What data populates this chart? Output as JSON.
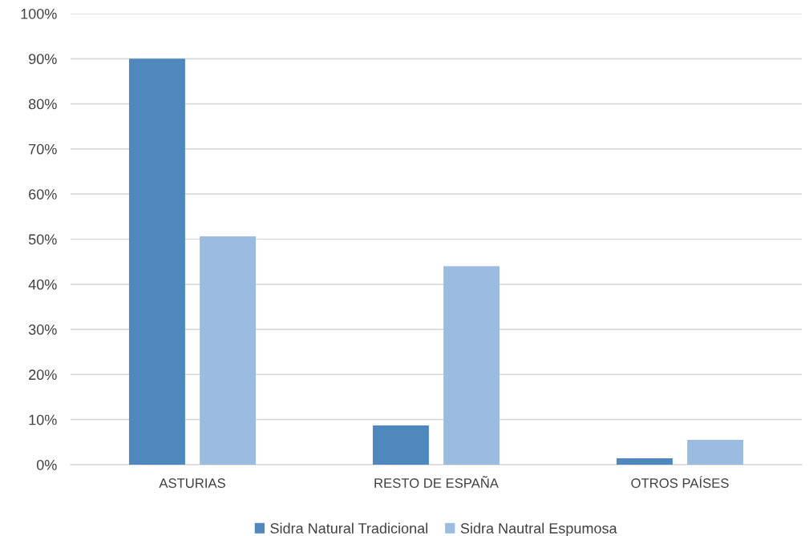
{
  "chart_data": {
    "type": "bar",
    "categories": [
      "ASTURIAS",
      "RESTO DE ESPAÑA",
      "OTROS PAÍSES"
    ],
    "series": [
      {
        "name": "Sidra Natural Tradicional",
        "color": "#4f88bc",
        "values": [
          90,
          8.7,
          1.4
        ]
      },
      {
        "name": "Sidra Nautral Espumosa",
        "color": "#9bbbe0",
        "values": [
          50.6,
          44.0,
          5.5
        ]
      }
    ],
    "ylim": [
      0,
      100
    ],
    "yticks": [
      {
        "value": 0,
        "label": "0%"
      },
      {
        "value": 10,
        "label": "10%"
      },
      {
        "value": 20,
        "label": "20%"
      },
      {
        "value": 30,
        "label": "30%"
      },
      {
        "value": 40,
        "label": "40%"
      },
      {
        "value": 50,
        "label": "50%"
      },
      {
        "value": 60,
        "label": "60%"
      },
      {
        "value": 70,
        "label": "70%"
      },
      {
        "value": 80,
        "label": "80%"
      },
      {
        "value": 90,
        "label": "90%"
      },
      {
        "value": 100,
        "label": "100%"
      }
    ],
    "grid": "y",
    "legend": "bottom"
  }
}
